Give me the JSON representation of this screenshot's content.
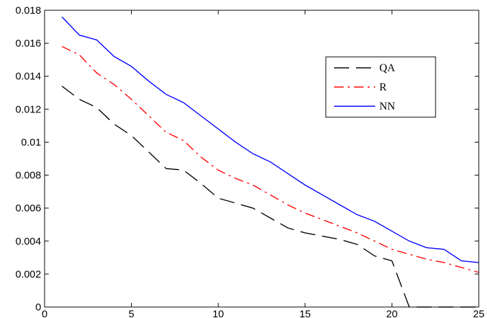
{
  "chart_data": {
    "type": "line",
    "xlim": [
      0,
      25
    ],
    "ylim": [
      0,
      0.018
    ],
    "x_ticks": [
      "0",
      "5",
      "10",
      "15",
      "20",
      "25"
    ],
    "y_ticks": [
      "0",
      "0.002",
      "0.004",
      "0.006",
      "0.008",
      "0.01",
      "0.012",
      "0.014",
      "0.016",
      "0.018"
    ],
    "grid": false,
    "legend_position": "top-right",
    "series": [
      {
        "name": "QA",
        "color": "#000000",
        "dash": "long-dash",
        "x": [
          1,
          2,
          3,
          4,
          5,
          6,
          7,
          8,
          9,
          10,
          11,
          12,
          13,
          14,
          15,
          16,
          17,
          18,
          19,
          20,
          21,
          22,
          23,
          24,
          25
        ],
        "y": [
          0.0134,
          0.0126,
          0.0121,
          0.0111,
          0.0104,
          0.0094,
          0.0084,
          0.0083,
          0.0075,
          0.0066,
          0.0063,
          0.006,
          0.0054,
          0.0048,
          0.0045,
          0.0043,
          0.0041,
          0.0038,
          0.0031,
          0.0028,
          0.0,
          0.0,
          0.0,
          0.0,
          0.0
        ]
      },
      {
        "name": "R",
        "color": "#ff0000",
        "dash": "dash-dot",
        "x": [
          1,
          2,
          3,
          4,
          5,
          6,
          7,
          8,
          9,
          10,
          11,
          12,
          13,
          14,
          15,
          16,
          17,
          18,
          19,
          20,
          21,
          22,
          23,
          24,
          25
        ],
        "y": [
          0.0158,
          0.0153,
          0.0142,
          0.0135,
          0.0126,
          0.0116,
          0.0106,
          0.0101,
          0.0091,
          0.0083,
          0.0078,
          0.0074,
          0.0068,
          0.0062,
          0.0057,
          0.0053,
          0.0049,
          0.0045,
          0.004,
          0.0035,
          0.0032,
          0.0029,
          0.0027,
          0.0024,
          0.0021
        ]
      },
      {
        "name": "NN",
        "color": "#0000ff",
        "dash": "solid",
        "x": [
          1,
          2,
          3,
          4,
          5,
          6,
          7,
          8,
          9,
          10,
          11,
          12,
          13,
          14,
          15,
          16,
          17,
          18,
          19,
          20,
          21,
          22,
          23,
          24,
          25
        ],
        "y": [
          0.0176,
          0.0165,
          0.0162,
          0.0152,
          0.0146,
          0.0137,
          0.0129,
          0.0124,
          0.0116,
          0.0108,
          0.01,
          0.0093,
          0.0088,
          0.0081,
          0.0074,
          0.0068,
          0.0062,
          0.0056,
          0.0052,
          0.0046,
          0.004,
          0.0036,
          0.0035,
          0.0028,
          0.0027
        ]
      }
    ]
  }
}
